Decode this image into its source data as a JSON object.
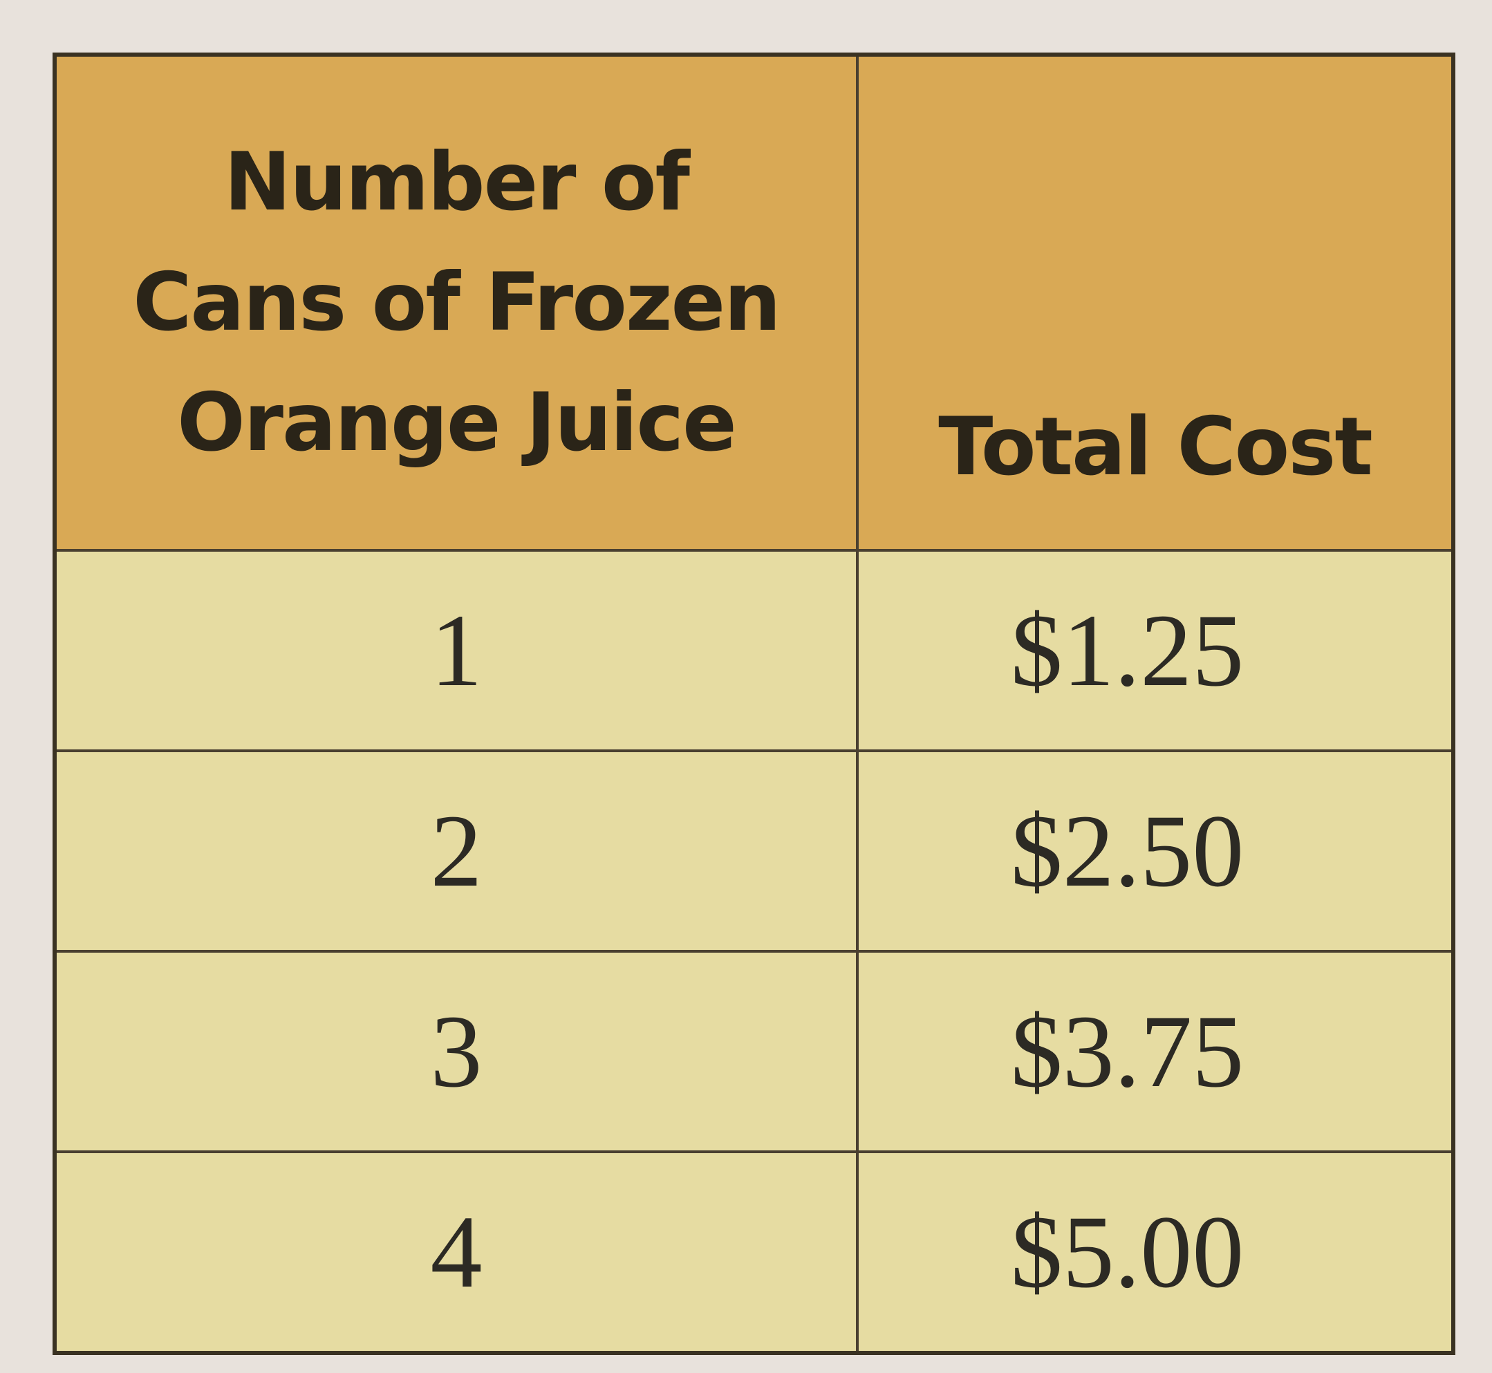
{
  "table": {
    "header": [
      [
        "Number of",
        "Cans of Frozen",
        "Orange Juice"
      ],
      [
        "Total Cost"
      ]
    ],
    "rows": [
      [
        "1",
        "$1.25"
      ],
      [
        "2",
        "$2.50"
      ],
      [
        "3",
        "$3.75"
      ],
      [
        "4",
        "$5.00"
      ]
    ]
  }
}
